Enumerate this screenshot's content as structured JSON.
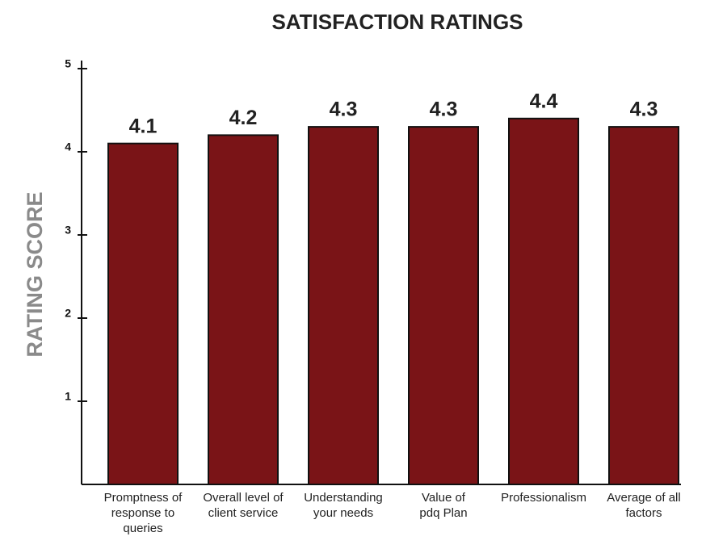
{
  "chart_data": {
    "type": "bar",
    "title": "SATISFACTION RATINGS",
    "y_label": "RATING SCORE",
    "categories": [
      "Promptness of\nresponse to\nqueries",
      "Overall level of\nclient service",
      "Understanding\nyour needs",
      "Value of\npdq Plan",
      "Professionalism",
      "Average of all\nfactors"
    ],
    "values": [
      4.1,
      4.2,
      4.3,
      4.3,
      4.4,
      4.3
    ],
    "color": "#7a1417",
    "ylim": [
      0,
      5
    ],
    "yticks": [
      1,
      2,
      3,
      4,
      5
    ],
    "grid": false
  }
}
